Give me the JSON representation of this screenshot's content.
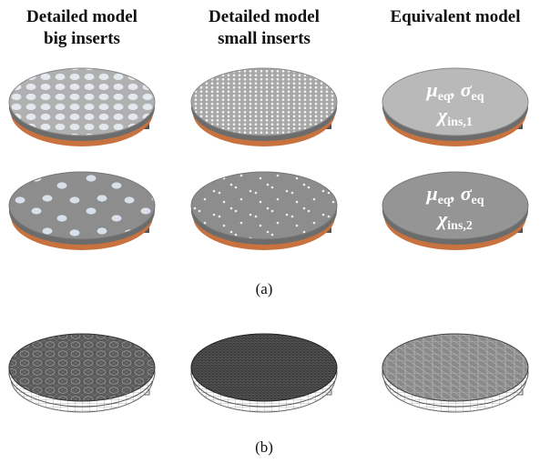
{
  "columns": [
    {
      "title_lines": [
        "Detailed model",
        "big inserts"
      ]
    },
    {
      "title_lines": [
        "Detailed model",
        "small inserts"
      ]
    },
    {
      "title_lines": [
        "Equivalent model"
      ]
    }
  ],
  "equivalent_labels": [
    {
      "mu": "μ",
      "mu_sub": "eq",
      "separator": ", ",
      "sigma": "σ",
      "sigma_sub": "eq",
      "chi": "χ",
      "chi_sub": "ins,1"
    },
    {
      "mu": "μ",
      "mu_sub": "eq",
      "separator": ", ",
      "sigma": "σ",
      "sigma_sub": "eq",
      "chi": "χ",
      "chi_sub": "ins,2"
    }
  ],
  "captions": [
    "(a)",
    "(b)"
  ]
}
